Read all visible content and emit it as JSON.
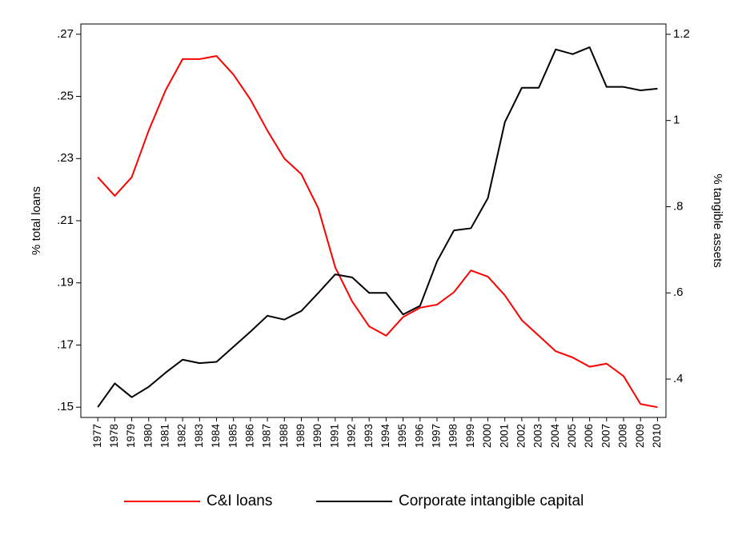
{
  "chart_data": {
    "type": "line",
    "x": [
      1977,
      1978,
      1979,
      1980,
      1981,
      1982,
      1983,
      1984,
      1985,
      1986,
      1987,
      1988,
      1989,
      1990,
      1991,
      1992,
      1993,
      1994,
      1995,
      1996,
      1997,
      1998,
      1999,
      2000,
      2001,
      2002,
      2003,
      2004,
      2005,
      2006,
      2007,
      2008,
      2009,
      2010
    ],
    "xlim": [
      1976,
      2010.5
    ],
    "xticks": [
      1977,
      1978,
      1979,
      1980,
      1981,
      1982,
      1983,
      1984,
      1985,
      1986,
      1987,
      1988,
      1989,
      1990,
      1991,
      1992,
      1993,
      1994,
      1995,
      1996,
      1997,
      1998,
      1999,
      2000,
      2001,
      2002,
      2003,
      2004,
      2005,
      2006,
      2007,
      2008,
      2009,
      2010
    ],
    "y_label": "% total loans",
    "y2_label": "% tangible assets",
    "ylim": [
      0.1467,
      0.2733
    ],
    "yticks": [
      {
        "value": 0.15,
        "label": ".15"
      },
      {
        "value": 0.17,
        "label": ".17"
      },
      {
        "value": 0.19,
        "label": ".19"
      },
      {
        "value": 0.21,
        "label": ".21"
      },
      {
        "value": 0.23,
        "label": ".23"
      },
      {
        "value": 0.25,
        "label": ".25"
      },
      {
        "value": 0.27,
        "label": ".27"
      }
    ],
    "y2lim": [
      0.311,
      1.224
    ],
    "y2ticks": [
      {
        "value": 0.4,
        "label": ".4"
      },
      {
        "value": 0.6,
        "label": ".6"
      },
      {
        "value": 0.8,
        "label": ".8"
      },
      1,
      1.2
    ],
    "series": [
      {
        "name": "C&I loans",
        "color": "#ff0000",
        "values": [
          0.224,
          0.218,
          0.224,
          0.239,
          0.252,
          0.262,
          0.262,
          0.263,
          0.257,
          0.249,
          0.239,
          0.23,
          0.225,
          0.214,
          0.195,
          0.184,
          0.176,
          0.173,
          0.179,
          0.182,
          0.183,
          0.187,
          0.194,
          0.192,
          0.186,
          0.178,
          0.173,
          0.168,
          0.166,
          0.163,
          0.164,
          0.16,
          0.151,
          0.15
        ]
      },
      {
        "name": "Corporate intangible capital",
        "color": "#000000",
        "axis": "y2",
        "values": [
          0.335,
          0.39,
          0.358,
          0.382,
          0.415,
          0.445,
          0.437,
          0.44,
          0.475,
          0.51,
          0.547,
          0.538,
          0.558,
          0.6,
          0.643,
          0.636,
          0.6,
          0.6,
          0.55,
          0.57,
          0.673,
          0.745,
          0.75,
          0.82,
          0.996,
          1.076,
          1.076,
          1.165,
          1.154,
          1.17,
          1.078,
          1.078,
          1.07,
          1.074
        ]
      }
    ],
    "legend": "bottom"
  }
}
